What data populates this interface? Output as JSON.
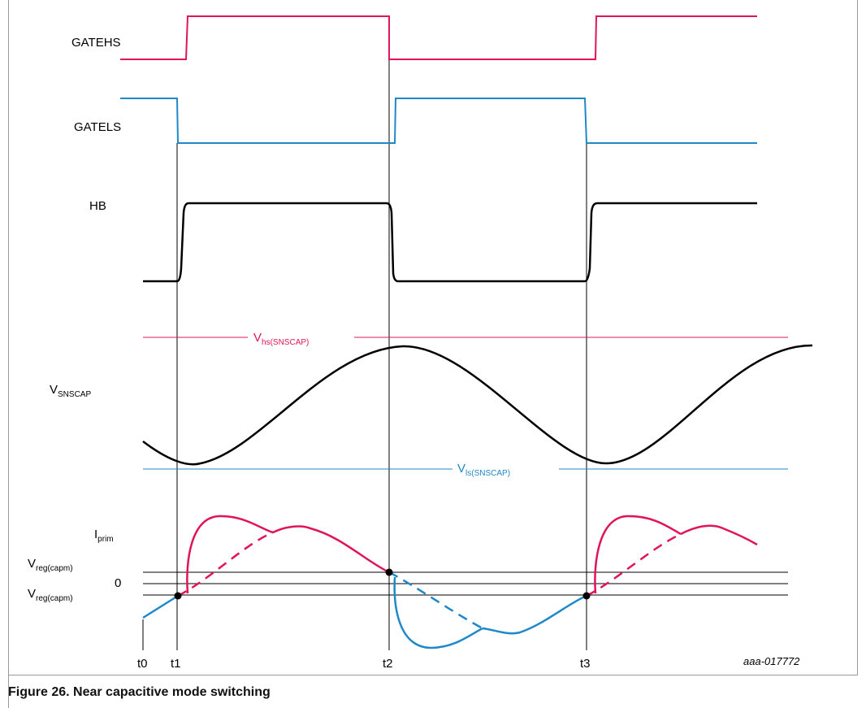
{
  "signals": {
    "gatehs": "GATEHS",
    "gatels": "GATELS",
    "hb": "HB",
    "vsnscap": {
      "main": "V",
      "sub": "SNSCAP"
    },
    "iprim": {
      "main": "I",
      "sub": "prim"
    }
  },
  "thresholds": {
    "vhs": {
      "main": "V",
      "sub": "hs(SNSCAP)"
    },
    "vls": {
      "main": "V",
      "sub": "ls(SNSCAP)"
    },
    "vreg_upper": {
      "main": "V",
      "sub": "reg(capm)"
    },
    "zero": "0",
    "vreg_lower": {
      "main": "V",
      "sub": "reg(capm)"
    }
  },
  "time_markers": [
    "t0",
    "t1",
    "t2",
    "t3"
  ],
  "reference_code": "aaa-017772",
  "caption": "Figure 26.  Near capacitive mode switching",
  "colors": {
    "gate_hs": "#e0145a",
    "gate_ls": "#1e88c8",
    "hb": "#000000",
    "frame": "#9a9a9a"
  }
}
